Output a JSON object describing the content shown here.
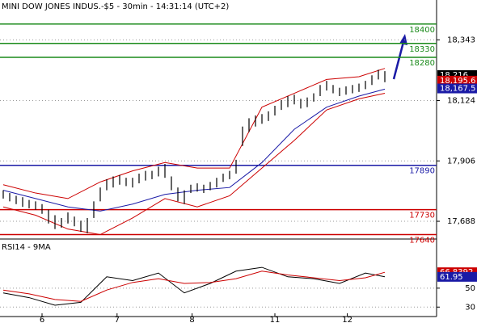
{
  "chart_data": [
    {
      "type": "ohlc",
      "title": "MINI DOW JONES INDUS.-$5 - 30min - 14:31:14 (UTC+2)",
      "color": "#000000",
      "x": [
        0,
        1,
        2,
        3,
        4,
        5,
        6,
        7,
        8,
        9,
        10,
        11,
        12,
        13,
        14,
        15,
        16,
        17,
        18,
        19,
        20,
        21,
        22,
        23,
        24,
        25,
        26,
        27,
        28,
        29,
        30,
        31,
        32,
        33,
        34,
        35,
        36,
        37,
        38,
        39,
        40,
        41,
        42,
        43,
        44,
        45,
        46,
        47,
        48,
        49,
        50,
        51,
        52,
        53,
        54,
        55,
        56,
        57,
        58,
        59
      ],
      "high": [
        17800,
        17790,
        17780,
        17775,
        17765,
        17760,
        17750,
        17730,
        17710,
        17700,
        17720,
        17705,
        17690,
        17700,
        17760,
        17810,
        17840,
        17850,
        17855,
        17845,
        17845,
        17860,
        17870,
        17870,
        17885,
        17895,
        17850,
        17810,
        17800,
        17820,
        17825,
        17820,
        17830,
        17845,
        17860,
        17870,
        17910,
        18030,
        18060,
        18070,
        18075,
        18085,
        18105,
        18125,
        18140,
        18145,
        18130,
        18135,
        18150,
        18180,
        18195,
        18180,
        18170,
        18175,
        18180,
        18185,
        18195,
        18215,
        18235,
        18230
      ],
      "low": [
        17770,
        17760,
        17750,
        17740,
        17735,
        17730,
        17715,
        17680,
        17660,
        17665,
        17680,
        17670,
        17650,
        17645,
        17700,
        17760,
        17800,
        17810,
        17820,
        17815,
        17810,
        17825,
        17835,
        17840,
        17850,
        17845,
        17800,
        17760,
        17750,
        17790,
        17795,
        17790,
        17800,
        17810,
        17830,
        17840,
        17860,
        17960,
        18010,
        18030,
        18040,
        18050,
        18070,
        18090,
        18100,
        18110,
        18095,
        18100,
        18120,
        18140,
        18160,
        18150,
        18140,
        18145,
        18150,
        18155,
        18165,
        18180,
        18200,
        18190
      ],
      "overlays": [
        {
          "color": "#1a1aa6",
          "x": [
            0,
            5,
            10,
            15,
            20,
            25,
            30,
            35,
            40,
            45,
            50,
            55,
            59
          ],
          "values": [
            17800,
            17770,
            17740,
            17725,
            17750,
            17785,
            17800,
            17810,
            17900,
            18020,
            18100,
            18140,
            18165
          ]
        },
        {
          "color": "#cc0000",
          "x": [
            0,
            5,
            10,
            15,
            20,
            25,
            30,
            35,
            40,
            45,
            50,
            55,
            59
          ],
          "values": [
            17820,
            17790,
            17770,
            17830,
            17870,
            17900,
            17880,
            17880,
            18100,
            18150,
            18200,
            18210,
            18240
          ]
        },
        {
          "color": "#cc0000",
          "x": [
            0,
            5,
            10,
            15,
            20,
            25,
            30,
            35,
            40,
            45,
            50,
            55,
            59
          ],
          "values": [
            17740,
            17710,
            17660,
            17640,
            17700,
            17770,
            17740,
            17780,
            17880,
            17980,
            18090,
            18130,
            18150
          ]
        }
      ],
      "levels": [
        {
          "value": 18400,
          "color": "#1a8a1a"
        },
        {
          "value": 18330,
          "color": "#1a8a1a"
        },
        {
          "value": 18280,
          "color": "#1a8a1a"
        },
        {
          "value": 17890,
          "color": "#1a1aa6"
        },
        {
          "value": 17730,
          "color": "#cc0000"
        },
        {
          "value": 17640,
          "color": "#cc0000"
        }
      ],
      "xlim": [
        -0.5,
        67
      ],
      "ylim": [
        17624,
        18446
      ],
      "yticks": [
        {
          "value": 17688,
          "label": "17,688"
        },
        {
          "value": 17906,
          "label": "17,906"
        },
        {
          "value": 18124,
          "label": "18,124"
        },
        {
          "value": 18343,
          "label": "18,343"
        }
      ],
      "grid": true,
      "markers": [
        {
          "value": 18216,
          "label": "18,216",
          "color": "#000000"
        },
        {
          "value": 18195.6,
          "label": "18,195.6",
          "color": "#cc0000"
        },
        {
          "value": 18167.5,
          "label": "18,167.5",
          "color": "#1a1aa6"
        }
      ]
    },
    {
      "type": "line",
      "title": "RSI14 - 9MA",
      "series": [
        {
          "color": "#000000",
          "x": [
            0,
            4,
            8,
            12,
            16,
            20,
            24,
            28,
            32,
            36,
            40,
            44,
            48,
            52,
            56,
            59
          ],
          "values": [
            45,
            40,
            32,
            35,
            62,
            58,
            66,
            45,
            55,
            68,
            72,
            62,
            60,
            55,
            66,
            62
          ]
        },
        {
          "color": "#cc0000",
          "x": [
            0,
            4,
            8,
            12,
            16,
            20,
            24,
            28,
            32,
            36,
            40,
            44,
            48,
            52,
            56,
            59
          ],
          "values": [
            48,
            44,
            38,
            36,
            48,
            56,
            60,
            55,
            56,
            60,
            68,
            64,
            61,
            58,
            61,
            66.8
          ]
        }
      ],
      "xlim": [
        -0.5,
        67
      ],
      "ylim": [
        20,
        90
      ],
      "yticks": [
        30,
        50
      ],
      "grid": true,
      "markers": [
        {
          "value": 66.8392,
          "label": "66.8392",
          "color": "#cc0000"
        },
        {
          "value": 61.95,
          "label": "61.95",
          "color": "#1a1aa6"
        }
      ],
      "xticks": [
        6,
        {
          "value": 17.6,
          "label": "7"
        },
        {
          "value": 29.2,
          "label": "8"
        },
        {
          "value": 42,
          "label": "11"
        },
        {
          "value": 53.2,
          "label": "12"
        }
      ]
    }
  ]
}
